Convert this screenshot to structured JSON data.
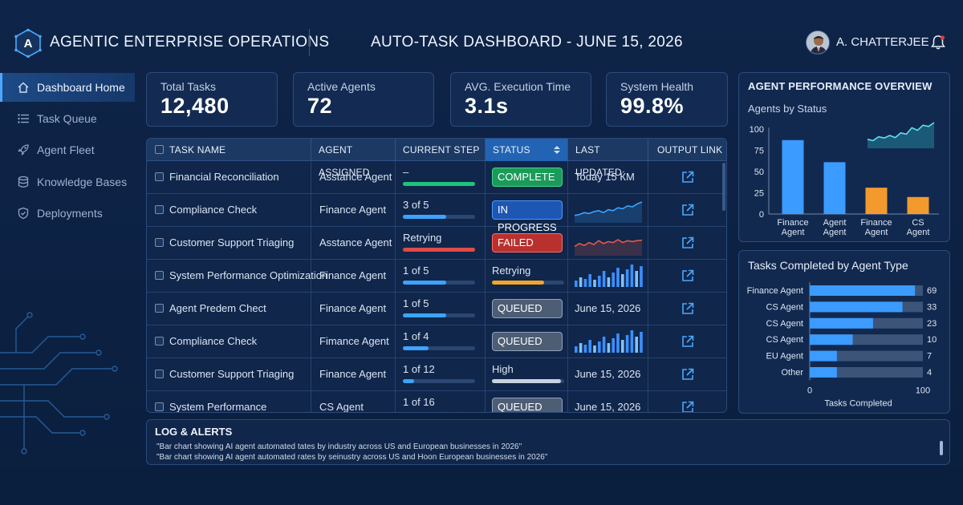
{
  "header": {
    "logo_letter": "A",
    "app_title": "AGENTIC ENTERPRISE OPERATIONS",
    "dashboard_title": "AUTO-TASK DASHBOARD - JUNE 15, 2026",
    "user_name": "A. CHATTERJEE"
  },
  "sidebar": {
    "items": [
      {
        "label": "Dashboard Home",
        "icon": "home-icon",
        "active": true
      },
      {
        "label": "Task Queue",
        "icon": "list-icon",
        "active": false
      },
      {
        "label": "Agent Fleet",
        "icon": "rocket-icon",
        "active": false
      },
      {
        "label": "Knowledge Bases",
        "icon": "database-icon",
        "active": false
      },
      {
        "label": "Deployments",
        "icon": "shield-icon",
        "active": false
      }
    ]
  },
  "stats": [
    {
      "label": "Total Tasks",
      "value": "12,480"
    },
    {
      "label": "Active Agents",
      "value": "72"
    },
    {
      "label": "AVG. Execution Time",
      "value": "3.1s"
    },
    {
      "label": "System Health",
      "value": "99.8%"
    }
  ],
  "table": {
    "headers": [
      "TASK NAME",
      "AGENT ASSIGNED",
      "CURRENT STEP",
      "STATUS",
      "LAST UPDATED",
      "OUTPUT LINK"
    ],
    "rows": [
      {
        "task": "Financial Reconciliation",
        "agent": "Asstance Agent",
        "step": "–",
        "progress": 1.0,
        "progress_color": "#1fc27a",
        "status": "COMPLETE",
        "status_kind": "complete",
        "updated": "Today 15 ЌM",
        "updated_kind": "text"
      },
      {
        "task": "Compliance Check",
        "agent": "Finance Agent",
        "step": "3 of 5",
        "progress": 0.6,
        "progress_color": "#3ba4ff",
        "status": "IN PROGRESS",
        "status_kind": "progress",
        "updated": "",
        "updated_kind": "line-blue"
      },
      {
        "task": "Customer Support Triaging",
        "agent": "Asstance Agent",
        "step": "Retrying",
        "progress": 1.0,
        "progress_color": "#e04a48",
        "status": "FAILED",
        "status_kind": "failed",
        "updated": "",
        "updated_kind": "line-red"
      },
      {
        "task": "System Performance Optimization",
        "agent": "Finance Agent",
        "step": "1 of 5",
        "progress": 0.6,
        "progress_color": "#3ba4ff",
        "status": "Retrying",
        "status_kind": "text",
        "status_progress": 0.72,
        "status_progress_color": "#f2a52a",
        "updated": "",
        "updated_kind": "bars"
      },
      {
        "task": "Agent Predem Chect",
        "agent": "Finance Agent",
        "step": "1 of 5",
        "progress": 0.6,
        "progress_color": "#3ba4ff",
        "status": "QUEUED",
        "status_kind": "queued",
        "updated": "June 15, 2026",
        "updated_kind": "text"
      },
      {
        "task": "Compliance Check",
        "agent": "Fimance Agent",
        "step": "1 of 4",
        "progress": 0.35,
        "progress_color": "#3ba4ff",
        "status": "QUEUED",
        "status_kind": "queued",
        "updated": "",
        "updated_kind": "bars"
      },
      {
        "task": "Customer Support Triaging",
        "agent": "Finance Agent",
        "step": "1 of 12",
        "progress": 0.15,
        "progress_color": "#3ba4ff",
        "status": "High",
        "status_kind": "text",
        "status_progress": 0.95,
        "status_progress_color": "#c7d2e0",
        "updated": "June 15, 2026",
        "updated_kind": "text"
      },
      {
        "task": "System Performance",
        "agent": "CS Agent",
        "step": "1 of 16",
        "progress": 0.1,
        "progress_color": "#3ba4ff",
        "status": "QUEUED",
        "status_kind": "queued",
        "updated": "June 15, 2026",
        "updated_kind": "text"
      }
    ]
  },
  "performance": {
    "title": "AGENT PERFORMANCE OVERVIEW",
    "subtitle": "Agents by Status"
  },
  "tasks_panel": {
    "title": "Tasks Completed by Agent Type",
    "xlabel": "Tasks Completed"
  },
  "chart_data": [
    {
      "type": "bar",
      "title": "Agents by Status",
      "categories": [
        "Finance Agent",
        "Agent Agent",
        "Finance Agent",
        "CS Agent"
      ],
      "values": [
        87,
        61,
        31,
        20
      ],
      "colors": [
        "#3b9bff",
        "#3b9bff",
        "#f29a2e",
        "#f29a2e"
      ],
      "ylim": [
        0,
        100
      ],
      "yticks": [
        0,
        25,
        50,
        75,
        100
      ],
      "inset_trend": [
        0.35,
        0.3,
        0.45,
        0.4,
        0.5,
        0.42,
        0.6,
        0.55,
        0.8,
        0.7,
        0.9,
        0.85,
        1.0
      ]
    },
    {
      "type": "bar",
      "orientation": "horizontal",
      "title": "Tasks Completed by Agent Type",
      "categories": [
        "Finance Agent",
        "CS Agent",
        "CS Agent",
        "CS Agent",
        "EU Agent",
        "Other"
      ],
      "values": [
        69,
        33,
        23,
        10,
        7,
        4
      ],
      "fill_fraction": [
        0.93,
        0.82,
        0.56,
        0.38,
        0.24,
        0.24
      ],
      "xlim": [
        0,
        100
      ],
      "xticks": [
        0,
        100
      ],
      "xlabel": "Tasks Completed"
    }
  ],
  "log": {
    "title": "LOG & ALERTS",
    "lines": [
      "\"Bar chart showing AI agent automated tates by industry across US and European businesses in 2026\"",
      "\"Bar chart showing AI agent automated rates by seinustry across US and Hoon European businesses in 2026\""
    ]
  },
  "colors": {
    "background": "#0a1f3d",
    "panel": "#10264a",
    "accent": "#3b9bff",
    "success": "#1fc27a",
    "danger": "#e04a48",
    "warning": "#f29a2e"
  }
}
